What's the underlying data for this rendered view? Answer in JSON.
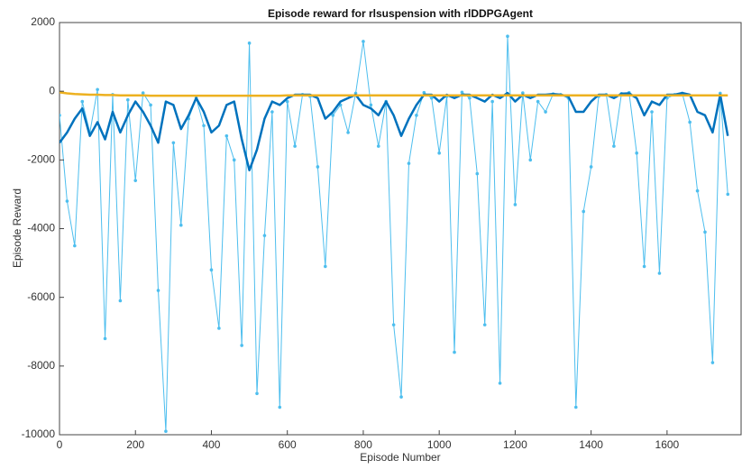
{
  "chart_data": {
    "type": "line",
    "title": "Episode reward for rlsuspension with rlDDPGAgent",
    "xlabel": "Episode Number",
    "ylabel": "Episode Reward",
    "x": [
      0,
      20,
      40,
      60,
      80,
      100,
      120,
      140,
      160,
      180,
      200,
      220,
      240,
      260,
      280,
      300,
      320,
      340,
      360,
      380,
      400,
      420,
      440,
      460,
      480,
      500,
      520,
      540,
      560,
      580,
      600,
      620,
      640,
      660,
      680,
      700,
      720,
      740,
      760,
      780,
      800,
      820,
      840,
      860,
      880,
      900,
      920,
      940,
      960,
      980,
      1000,
      1020,
      1040,
      1060,
      1080,
      1100,
      1120,
      1140,
      1160,
      1180,
      1200,
      1220,
      1240,
      1260,
      1280,
      1300,
      1320,
      1340,
      1360,
      1380,
      1400,
      1420,
      1440,
      1460,
      1480,
      1500,
      1520,
      1540,
      1560,
      1580,
      1600,
      1620,
      1640,
      1660,
      1680,
      1700,
      1720,
      1740,
      1760
    ],
    "series": [
      {
        "color": "#4dbeee",
        "markers": true,
        "values": [
          -700,
          -3200,
          -4500,
          -300,
          -1200,
          50,
          -7200,
          -100,
          -6100,
          -250,
          -2600,
          -50,
          -400,
          -5800,
          -9900,
          -1500,
          -3900,
          -800,
          -200,
          -1000,
          -5200,
          -6900,
          -1300,
          -2000,
          -7400,
          1400,
          -8800,
          -4200,
          -600,
          -9200,
          -300,
          -1600,
          -100,
          -150,
          -2200,
          -5100,
          -700,
          -400,
          -1200,
          -60,
          1450,
          -400,
          -1600,
          -300,
          -6800,
          -8900,
          -2100,
          -700,
          -40,
          -200,
          -1800,
          -150,
          -7600,
          -30,
          -200,
          -2400,
          -6800,
          -300,
          -8500,
          1600,
          -3300,
          -50,
          -2000,
          -300,
          -600,
          -80,
          -100,
          -200,
          -9200,
          -3500,
          -2200,
          -150,
          -100,
          -1600,
          -70,
          -40,
          -1800,
          -5100,
          -600,
          -5300,
          -200,
          -100,
          -60,
          -900,
          -2900,
          -4100,
          -7900,
          -60,
          -3000
        ]
      },
      {
        "color": "#0072bd",
        "markers": false,
        "values": [
          -1500,
          -1200,
          -800,
          -500,
          -1300,
          -900,
          -1400,
          -600,
          -1200,
          -700,
          -300,
          -600,
          -1000,
          -1500,
          -300,
          -400,
          -1100,
          -700,
          -200,
          -600,
          -1200,
          -1000,
          -400,
          -300,
          -1400,
          -2300,
          -1700,
          -800,
          -300,
          -400,
          -200,
          -100,
          -100,
          -100,
          -200,
          -800,
          -600,
          -300,
          -200,
          -100,
          -400,
          -500,
          -700,
          -300,
          -700,
          -1300,
          -800,
          -400,
          -100,
          -100,
          -300,
          -100,
          -200,
          -100,
          -100,
          -200,
          -300,
          -100,
          -200,
          -50,
          -300,
          -100,
          -200,
          -100,
          -100,
          -80,
          -100,
          -150,
          -600,
          -600,
          -300,
          -100,
          -100,
          -200,
          -70,
          -60,
          -200,
          -700,
          -300,
          -400,
          -100,
          -100,
          -50,
          -100,
          -600,
          -700,
          -1200,
          -100,
          -1300
        ]
      },
      {
        "color": "#edb120",
        "markers": false,
        "values": [
          -30,
          -60,
          -80,
          -90,
          -100,
          -100,
          -110,
          -110,
          -120,
          -120,
          -120,
          -120,
          -130,
          -130,
          -130,
          -130,
          -130,
          -130,
          -130,
          -130,
          -130,
          -130,
          -130,
          -130,
          -130,
          -130,
          -130,
          -130,
          -130,
          -130,
          -120,
          -120,
          -120,
          -120,
          -120,
          -120,
          -120,
          -120,
          -120,
          -120,
          -120,
          -120,
          -120,
          -120,
          -120,
          -120,
          -120,
          -120,
          -120,
          -120,
          -120,
          -120,
          -120,
          -120,
          -120,
          -120,
          -120,
          -120,
          -120,
          -120,
          -120,
          -120,
          -120,
          -120,
          -120,
          -120,
          -120,
          -120,
          -120,
          -120,
          -120,
          -120,
          -120,
          -120,
          -120,
          -120,
          -120,
          -120,
          -120,
          -120,
          -120,
          -120,
          -120,
          -120,
          -120,
          -120,
          -120,
          -120,
          -120
        ]
      }
    ],
    "xlim": [
      0,
      1795
    ],
    "ylim": [
      -10000,
      2000
    ],
    "xticks": [
      0,
      200,
      400,
      600,
      800,
      1000,
      1200,
      1400,
      1600
    ],
    "yticks": [
      -10000,
      -8000,
      -6000,
      -4000,
      -2000,
      0,
      2000
    ],
    "grid": false
  }
}
